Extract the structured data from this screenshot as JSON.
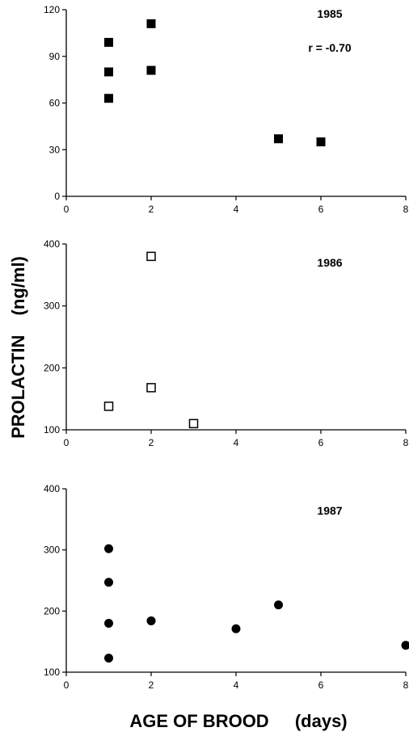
{
  "ylabel": "PROLACTIN (ng/ml)",
  "ylabel_parts": [
    "PROLACTIN",
    "(ng/ml)"
  ],
  "xlabel": "AGE OF BROOD (days)",
  "xlabel_parts": [
    "AGE OF BROOD",
    "(days)"
  ],
  "colors": {
    "marker": "#000000",
    "axis": "#000000",
    "background": "#ffffff"
  },
  "chart_data": [
    {
      "type": "scatter",
      "label": "1985",
      "annotation": "r = -0.70",
      "marker": "filled-square",
      "xlim": [
        0,
        8
      ],
      "ylim": [
        0,
        120
      ],
      "xticks": [
        0,
        2,
        4,
        6,
        8
      ],
      "yticks": [
        0,
        30,
        60,
        90,
        120
      ],
      "points": [
        {
          "x": 1,
          "y": 99
        },
        {
          "x": 1,
          "y": 80
        },
        {
          "x": 1,
          "y": 63
        },
        {
          "x": 2,
          "y": 111
        },
        {
          "x": 2,
          "y": 81
        },
        {
          "x": 5,
          "y": 37
        },
        {
          "x": 6,
          "y": 35
        }
      ]
    },
    {
      "type": "scatter",
      "label": "1986",
      "marker": "open-square",
      "xlim": [
        0,
        8
      ],
      "ylim": [
        100,
        400
      ],
      "xticks": [
        0,
        2,
        4,
        6,
        8
      ],
      "yticks": [
        100,
        200,
        300,
        400
      ],
      "points": [
        {
          "x": 1,
          "y": 138
        },
        {
          "x": 2,
          "y": 380
        },
        {
          "x": 2,
          "y": 168
        },
        {
          "x": 3,
          "y": 110
        }
      ]
    },
    {
      "type": "scatter",
      "label": "1987",
      "marker": "filled-circle",
      "xlim": [
        0,
        8
      ],
      "ylim": [
        100,
        400
      ],
      "xticks": [
        0,
        2,
        4,
        6,
        8
      ],
      "yticks": [
        100,
        200,
        300,
        400
      ],
      "points": [
        {
          "x": 1,
          "y": 302
        },
        {
          "x": 1,
          "y": 247
        },
        {
          "x": 1,
          "y": 180
        },
        {
          "x": 1,
          "y": 123
        },
        {
          "x": 2,
          "y": 184
        },
        {
          "x": 4,
          "y": 171
        },
        {
          "x": 5,
          "y": 210
        },
        {
          "x": 8,
          "y": 144
        }
      ]
    }
  ]
}
